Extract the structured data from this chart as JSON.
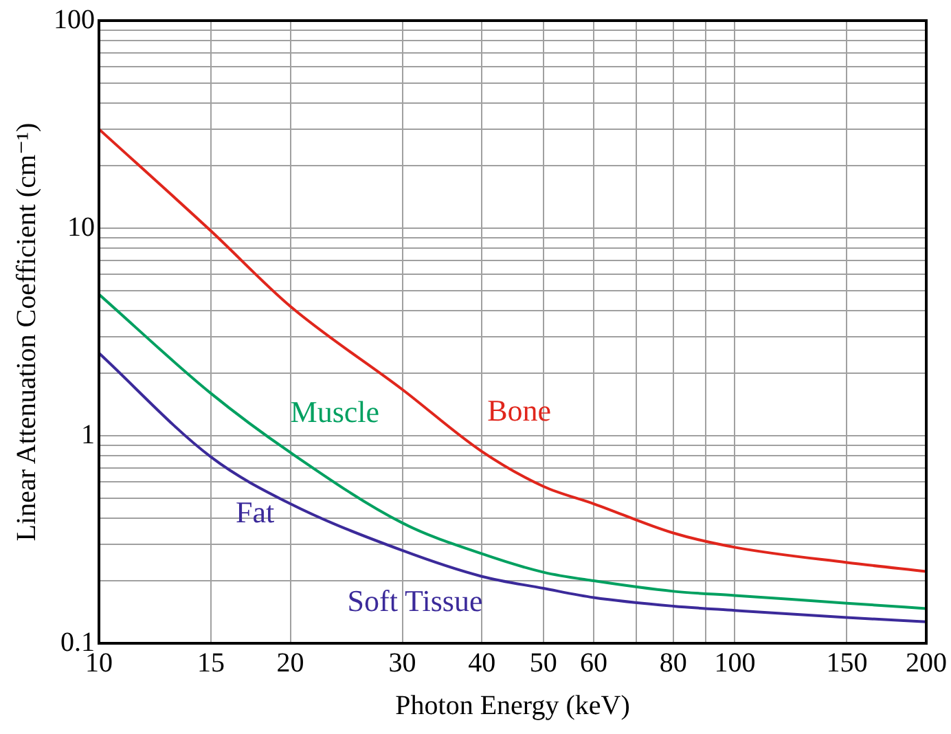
{
  "chart_data": {
    "type": "line",
    "xlabel": "Photon Energy (keV)",
    "ylabel": "Linear Attenuation Coefficient (cm⁻¹)",
    "x": [
      10,
      15,
      20,
      30,
      40,
      50,
      60,
      80,
      100,
      150,
      200
    ],
    "series": [
      {
        "name": "Bone",
        "color": "#e0261c",
        "values": [
          30,
          9.7,
          4.2,
          1.67,
          0.84,
          0.57,
          0.47,
          0.34,
          0.29,
          0.245,
          0.222
        ]
      },
      {
        "name": "Muscle",
        "color": "#00a060",
        "values": [
          4.8,
          1.6,
          0.83,
          0.38,
          0.27,
          0.22,
          0.2,
          0.178,
          0.17,
          0.156,
          0.147
        ]
      },
      {
        "name": "Fat",
        "color": "#3b2a9a",
        "values": [
          2.5,
          0.79,
          0.47,
          0.28,
          0.21,
          0.184,
          0.166,
          0.151,
          0.144,
          0.133,
          0.127
        ]
      }
    ],
    "annotations": [
      "Soft Tissue"
    ],
    "log": "xy",
    "xlim": [
      10,
      200
    ],
    "ylim": [
      0.1,
      100
    ],
    "xticks": [
      10,
      15,
      20,
      30,
      40,
      50,
      60,
      {
        "value": 70,
        "label": null
      },
      80,
      {
        "value": 90,
        "label": null
      },
      100,
      150,
      200
    ],
    "yticks": [
      0.1,
      {
        "value": 0.2,
        "label": null
      },
      {
        "value": 0.3,
        "label": null
      },
      {
        "value": 0.4,
        "label": null
      },
      {
        "value": 0.5,
        "label": null
      },
      {
        "value": 0.6,
        "label": null
      },
      {
        "value": 0.7,
        "label": null
      },
      {
        "value": 0.8,
        "label": null
      },
      {
        "value": 0.9,
        "label": null
      },
      1,
      {
        "value": 2,
        "label": null
      },
      {
        "value": 3,
        "label": null
      },
      {
        "value": 4,
        "label": null
      },
      {
        "value": 5,
        "label": null
      },
      {
        "value": 6,
        "label": null
      },
      {
        "value": 7,
        "label": null
      },
      {
        "value": 8,
        "label": null
      },
      {
        "value": 9,
        "label": null
      },
      10,
      {
        "value": 20,
        "label": null
      },
      {
        "value": 30,
        "label": null
      },
      {
        "value": 40,
        "label": null
      },
      {
        "value": 50,
        "label": null
      },
      {
        "value": 60,
        "label": null
      },
      {
        "value": 70,
        "label": null
      },
      {
        "value": 80,
        "label": null
      },
      {
        "value": 90,
        "label": null
      },
      100
    ],
    "grid": true,
    "legend": false,
    "marker": "none",
    "line_style": "solid"
  }
}
